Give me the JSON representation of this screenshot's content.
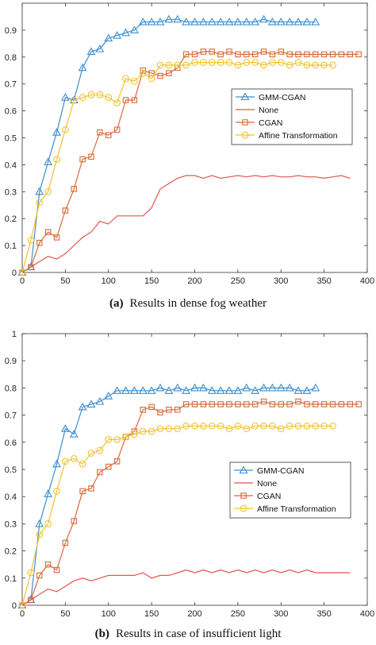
{
  "chart_data": [
    {
      "type": "line",
      "caption_label": "(a)",
      "caption_text": "Results in dense fog weather",
      "xlim": [
        0,
        400
      ],
      "ylim": [
        0,
        1
      ],
      "xticks": [
        "0",
        "50",
        "100",
        "150",
        "200",
        "250",
        "300",
        "350",
        "400"
      ],
      "yticks": [
        "0",
        "0.1",
        "0.2",
        "0.3",
        "0.4",
        "0.5",
        "0.6",
        "0.7",
        "0.8",
        "0.9"
      ],
      "grid": false,
      "legend_position": "right",
      "series": [
        {
          "name": "GMM-CGAN",
          "color": "#3a8fd0",
          "marker": "triangle",
          "x": [
            0,
            10,
            20,
            30,
            40,
            50,
            60,
            70,
            80,
            90,
            100,
            110,
            120,
            130,
            140,
            150,
            160,
            170,
            180,
            190,
            200,
            210,
            220,
            230,
            240,
            250,
            260,
            270,
            280,
            290,
            300,
            310,
            320,
            330,
            340
          ],
          "y": [
            0,
            0.02,
            0.3,
            0.41,
            0.52,
            0.65,
            0.64,
            0.76,
            0.82,
            0.83,
            0.87,
            0.88,
            0.89,
            0.9,
            0.93,
            0.93,
            0.93,
            0.94,
            0.94,
            0.93,
            0.93,
            0.93,
            0.93,
            0.93,
            0.93,
            0.93,
            0.93,
            0.93,
            0.94,
            0.93,
            0.93,
            0.93,
            0.93,
            0.93,
            0.93
          ]
        },
        {
          "name": "None",
          "color": "#e0574f",
          "marker": "none",
          "x": [
            0,
            10,
            20,
            30,
            40,
            50,
            60,
            70,
            80,
            90,
            100,
            110,
            120,
            130,
            140,
            150,
            160,
            170,
            180,
            190,
            200,
            210,
            220,
            230,
            240,
            250,
            260,
            270,
            280,
            290,
            300,
            310,
            320,
            330,
            340,
            350,
            360,
            370,
            380
          ],
          "y": [
            0,
            0.02,
            0.04,
            0.06,
            0.05,
            0.07,
            0.1,
            0.13,
            0.15,
            0.19,
            0.18,
            0.21,
            0.21,
            0.21,
            0.21,
            0.24,
            0.31,
            0.33,
            0.35,
            0.36,
            0.36,
            0.35,
            0.36,
            0.35,
            0.355,
            0.36,
            0.355,
            0.36,
            0.355,
            0.36,
            0.355,
            0.355,
            0.36,
            0.355,
            0.355,
            0.35,
            0.355,
            0.36,
            0.35
          ]
        },
        {
          "name": "CGAN",
          "color": "#d9683a",
          "marker": "square",
          "x": [
            0,
            10,
            20,
            30,
            40,
            50,
            60,
            70,
            80,
            90,
            100,
            110,
            120,
            130,
            140,
            150,
            160,
            170,
            180,
            190,
            200,
            210,
            220,
            230,
            240,
            250,
            260,
            270,
            280,
            290,
            300,
            310,
            320,
            330,
            340,
            350,
            360,
            370,
            380,
            390
          ],
          "y": [
            0,
            0.02,
            0.11,
            0.15,
            0.13,
            0.23,
            0.31,
            0.42,
            0.43,
            0.52,
            0.51,
            0.53,
            0.64,
            0.64,
            0.75,
            0.74,
            0.73,
            0.74,
            0.76,
            0.81,
            0.81,
            0.82,
            0.82,
            0.81,
            0.82,
            0.81,
            0.81,
            0.81,
            0.82,
            0.81,
            0.82,
            0.81,
            0.81,
            0.81,
            0.81,
            0.81,
            0.81,
            0.81,
            0.81,
            0.81
          ]
        },
        {
          "name": "Affine Transformation",
          "color": "#f2c22e",
          "marker": "circle",
          "x": [
            0,
            10,
            20,
            30,
            40,
            50,
            60,
            70,
            80,
            90,
            100,
            110,
            120,
            130,
            140,
            150,
            160,
            170,
            180,
            190,
            200,
            210,
            220,
            230,
            240,
            250,
            260,
            270,
            280,
            290,
            300,
            310,
            320,
            330,
            340,
            350,
            360
          ],
          "y": [
            0,
            0.12,
            0.26,
            0.3,
            0.42,
            0.53,
            0.64,
            0.65,
            0.66,
            0.66,
            0.65,
            0.63,
            0.72,
            0.71,
            0.74,
            0.72,
            0.77,
            0.77,
            0.77,
            0.77,
            0.78,
            0.78,
            0.78,
            0.78,
            0.78,
            0.77,
            0.78,
            0.78,
            0.77,
            0.78,
            0.78,
            0.77,
            0.78,
            0.77,
            0.77,
            0.77,
            0.77
          ]
        }
      ]
    },
    {
      "type": "line",
      "caption_label": "(b)",
      "caption_text": "Results in case of insufficient light",
      "xlim": [
        0,
        400
      ],
      "ylim": [
        0,
        1
      ],
      "xticks": [
        "0",
        "50",
        "100",
        "150",
        "200",
        "250",
        "300",
        "350",
        "400"
      ],
      "yticks": [
        "0",
        "0.1",
        "0.2",
        "0.3",
        "0.4",
        "0.5",
        "0.6",
        "0.7",
        "0.8",
        "0.9",
        "1"
      ],
      "grid": false,
      "legend_position": "right",
      "series": [
        {
          "name": "GMM-CGAN",
          "color": "#3a8fd0",
          "marker": "triangle",
          "x": [
            0,
            10,
            20,
            30,
            40,
            50,
            60,
            70,
            80,
            90,
            100,
            110,
            120,
            130,
            140,
            150,
            160,
            170,
            180,
            190,
            200,
            210,
            220,
            230,
            240,
            250,
            260,
            270,
            280,
            290,
            300,
            310,
            320,
            330,
            340
          ],
          "y": [
            0,
            0.02,
            0.3,
            0.41,
            0.52,
            0.65,
            0.63,
            0.73,
            0.74,
            0.75,
            0.77,
            0.79,
            0.79,
            0.79,
            0.79,
            0.79,
            0.8,
            0.79,
            0.8,
            0.79,
            0.8,
            0.8,
            0.79,
            0.79,
            0.79,
            0.79,
            0.8,
            0.79,
            0.8,
            0.8,
            0.8,
            0.8,
            0.79,
            0.79,
            0.8
          ]
        },
        {
          "name": "None",
          "color": "#e0574f",
          "marker": "none",
          "x": [
            0,
            10,
            20,
            30,
            40,
            50,
            60,
            70,
            80,
            90,
            100,
            110,
            120,
            130,
            140,
            150,
            160,
            170,
            180,
            190,
            200,
            210,
            220,
            230,
            240,
            250,
            260,
            270,
            280,
            290,
            300,
            310,
            320,
            330,
            340,
            350,
            360,
            370,
            380
          ],
          "y": [
            0,
            0.02,
            0.04,
            0.06,
            0.05,
            0.07,
            0.09,
            0.1,
            0.09,
            0.1,
            0.11,
            0.11,
            0.11,
            0.11,
            0.12,
            0.1,
            0.11,
            0.11,
            0.12,
            0.13,
            0.12,
            0.13,
            0.12,
            0.13,
            0.12,
            0.13,
            0.12,
            0.13,
            0.12,
            0.13,
            0.12,
            0.13,
            0.12,
            0.13,
            0.12,
            0.12,
            0.12,
            0.12,
            0.12
          ]
        },
        {
          "name": "CGAN",
          "color": "#d9683a",
          "marker": "square",
          "x": [
            0,
            10,
            20,
            30,
            40,
            50,
            60,
            70,
            80,
            90,
            100,
            110,
            120,
            130,
            140,
            150,
            160,
            170,
            180,
            190,
            200,
            210,
            220,
            230,
            240,
            250,
            260,
            270,
            280,
            290,
            300,
            310,
            320,
            330,
            340,
            350,
            360,
            370,
            380,
            390
          ],
          "y": [
            0,
            0.02,
            0.11,
            0.15,
            0.13,
            0.23,
            0.31,
            0.42,
            0.43,
            0.49,
            0.51,
            0.53,
            0.62,
            0.64,
            0.72,
            0.73,
            0.71,
            0.72,
            0.72,
            0.74,
            0.74,
            0.74,
            0.74,
            0.74,
            0.74,
            0.74,
            0.74,
            0.74,
            0.75,
            0.74,
            0.74,
            0.74,
            0.75,
            0.74,
            0.74,
            0.74,
            0.74,
            0.74,
            0.74,
            0.74
          ]
        },
        {
          "name": "Affine Transformation",
          "color": "#f2c22e",
          "marker": "circle",
          "x": [
            0,
            10,
            20,
            30,
            40,
            50,
            60,
            70,
            80,
            90,
            100,
            110,
            120,
            130,
            140,
            150,
            160,
            170,
            180,
            190,
            200,
            210,
            220,
            230,
            240,
            250,
            260,
            270,
            280,
            290,
            300,
            310,
            320,
            330,
            340,
            350,
            360
          ],
          "y": [
            0,
            0.12,
            0.26,
            0.3,
            0.42,
            0.53,
            0.54,
            0.52,
            0.56,
            0.57,
            0.61,
            0.61,
            0.62,
            0.63,
            0.64,
            0.64,
            0.65,
            0.65,
            0.65,
            0.66,
            0.66,
            0.66,
            0.66,
            0.66,
            0.65,
            0.66,
            0.65,
            0.66,
            0.66,
            0.66,
            0.65,
            0.66,
            0.66,
            0.66,
            0.66,
            0.66,
            0.66
          ]
        }
      ]
    }
  ]
}
